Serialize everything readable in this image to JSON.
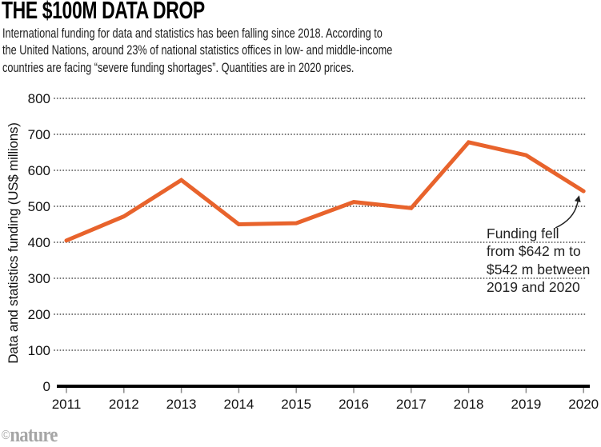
{
  "header": {
    "title": "THE $100M DATA DROP",
    "subtitle_lines": [
      "International funding for data and statistics has been falling since 2018. According to",
      "the United Nations, around 23% of national statistics offices in low- and middle-income",
      "countries are facing “severe funding shortages”. Quantities are in 2020 prices."
    ]
  },
  "chart_data": {
    "type": "line",
    "title": "THE $100M DATA DROP",
    "categories": [
      "2011",
      "2012",
      "2013",
      "2014",
      "2015",
      "2016",
      "2017",
      "2018",
      "2019",
      "2020"
    ],
    "series": [
      {
        "name": "Data and statistics funding",
        "values": [
          405,
          472,
          573,
          450,
          453,
          512,
          495,
          678,
          642,
          542
        ]
      }
    ],
    "xlabel": "",
    "ylabel": "Data and statistics funding (US$ millions)",
    "ylim": [
      0,
      800
    ],
    "yticks": [
      0,
      100,
      200,
      300,
      400,
      500,
      600,
      700,
      800
    ],
    "grid": "horizontal-dotted",
    "legend": "none",
    "line_color": "#e8632c",
    "grid_color": "#555555",
    "axis_color": "#000000",
    "tick_color": "#8a8a8a",
    "text_color": "#111111",
    "annotation": {
      "lines": [
        "Funding fell",
        "from $642 m to",
        "$542 m between",
        "2019 and 2020"
      ],
      "points_to_year": "2020"
    }
  },
  "footer": {
    "copyright": "©",
    "brand": "nature"
  }
}
